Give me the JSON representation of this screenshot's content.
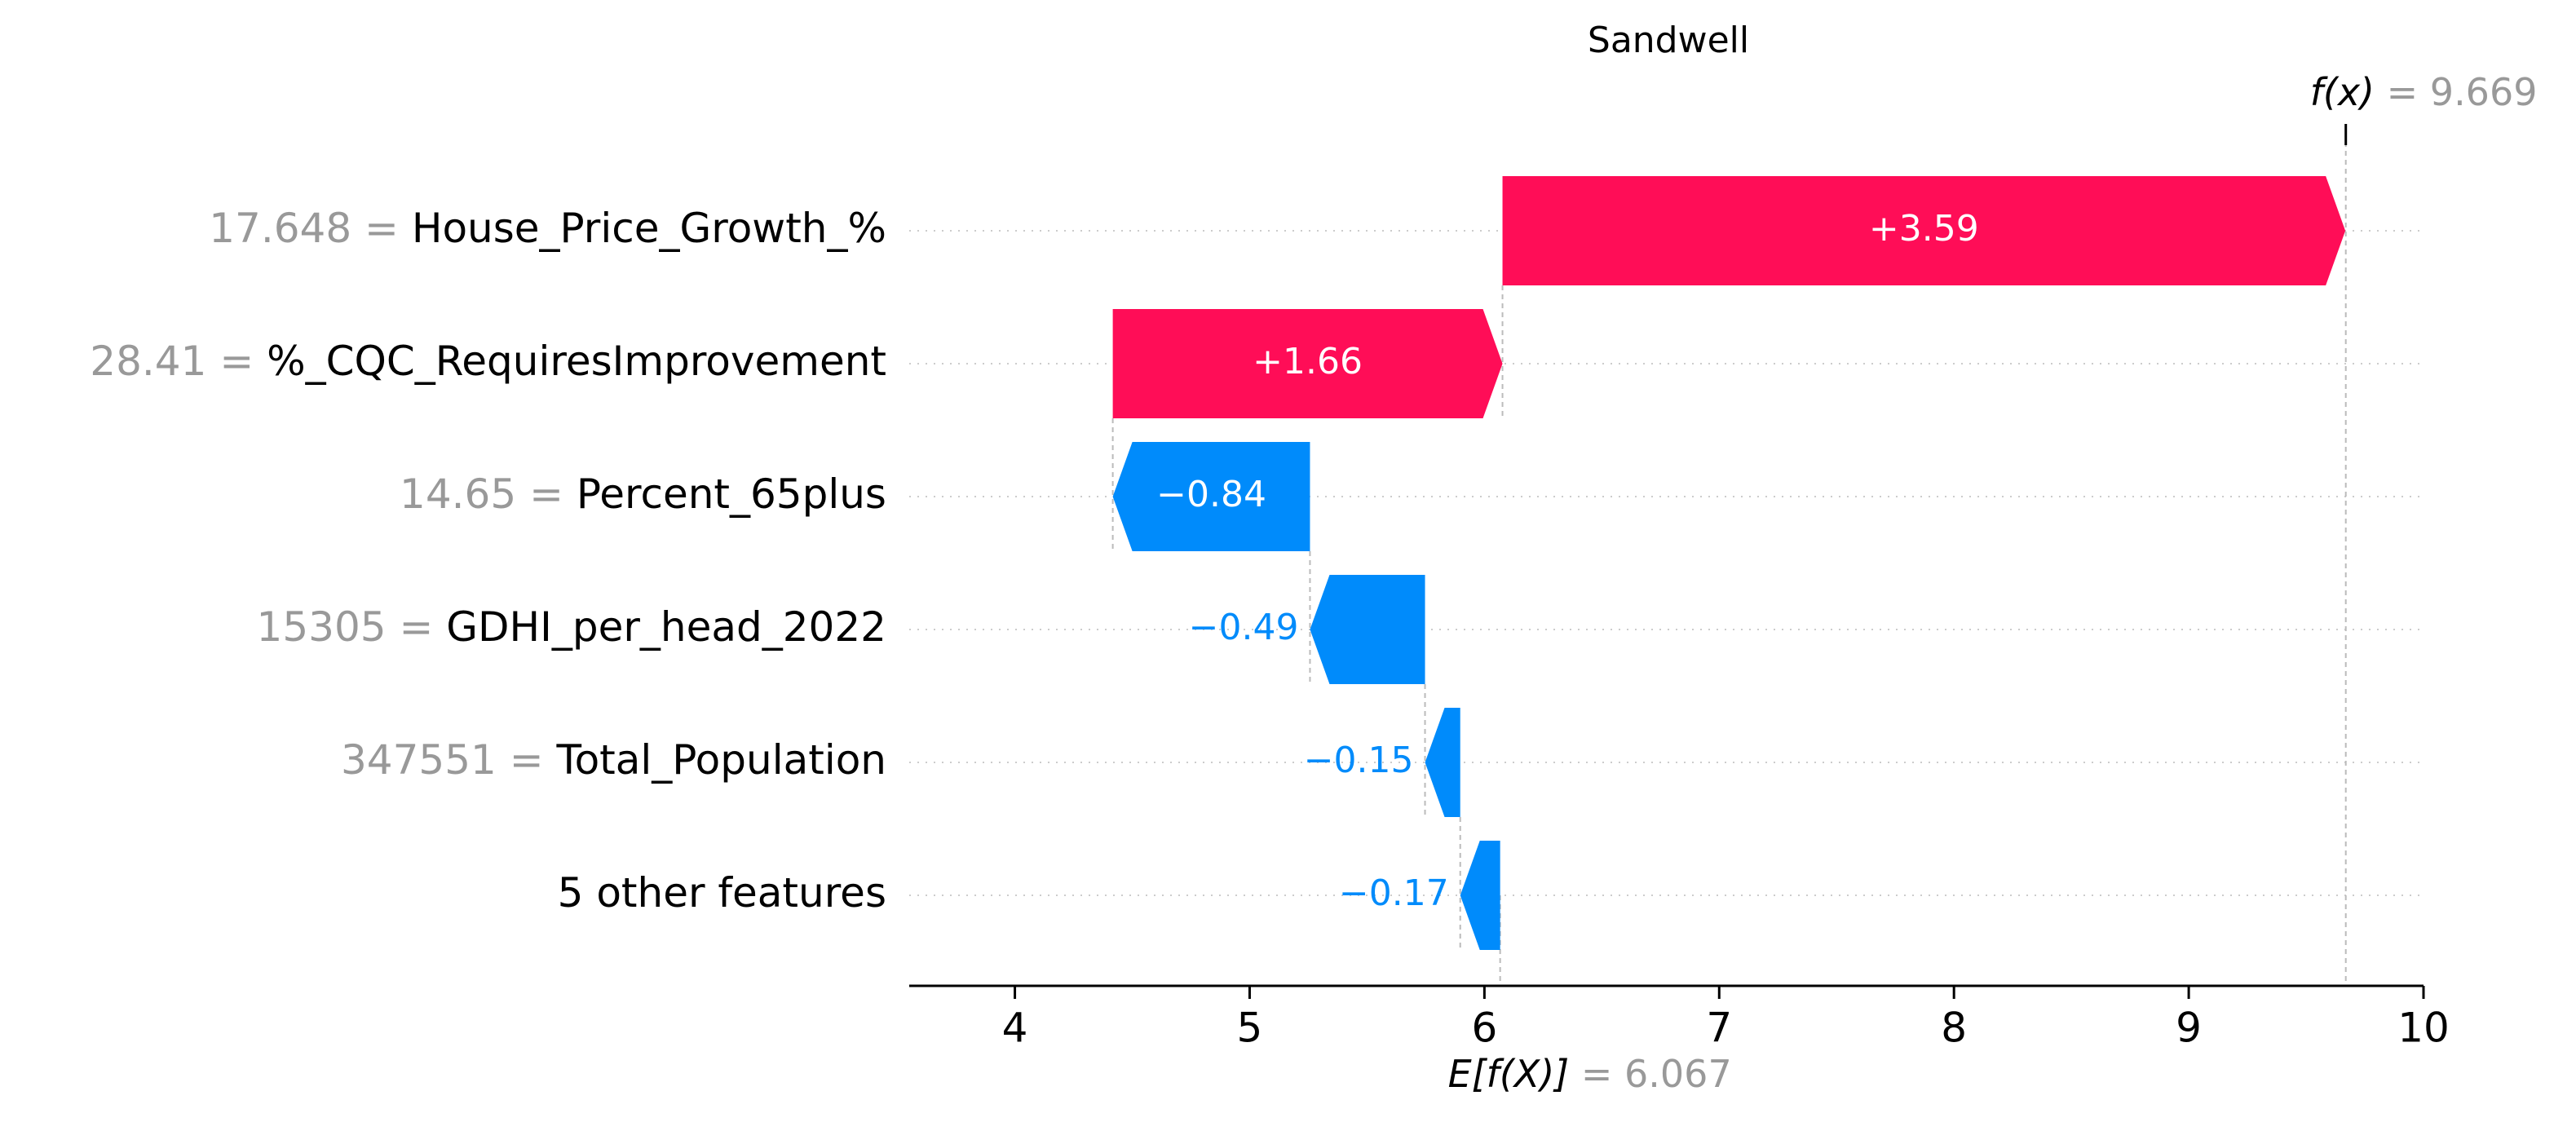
{
  "chart_data": {
    "type": "waterfall",
    "title": "Sandwell",
    "fx_label": "f(x)",
    "fx_value": "9.669",
    "ex_label": "E[f(X)]",
    "ex_value": "6.067",
    "base_value": 6.067,
    "final_value": 9.669,
    "xlim": [
      3.55,
      10.0
    ],
    "xticks": [
      4,
      5,
      6,
      7,
      8,
      9,
      10
    ],
    "colors": {
      "positive": "#ff0d57",
      "negative": "#008bfb",
      "value_grey": "#999999"
    },
    "features": [
      {
        "value": "17.648",
        "name": "House_Price_Growth_%",
        "contribution": 3.59,
        "label": "+3.59"
      },
      {
        "value": "28.41",
        "name": "%_CQC_RequiresImprovement",
        "contribution": 1.66,
        "label": "+1.66"
      },
      {
        "value": "14.65",
        "name": "Percent_65plus",
        "contribution": -0.84,
        "label": "−0.84"
      },
      {
        "value": "15305",
        "name": "GDHI_per_head_2022",
        "contribution": -0.49,
        "label": "−0.49"
      },
      {
        "value": "347551",
        "name": "Total_Population",
        "contribution": -0.15,
        "label": "−0.15"
      },
      {
        "value": "",
        "name": "5 other features",
        "contribution": -0.17,
        "label": "−0.17"
      }
    ]
  }
}
